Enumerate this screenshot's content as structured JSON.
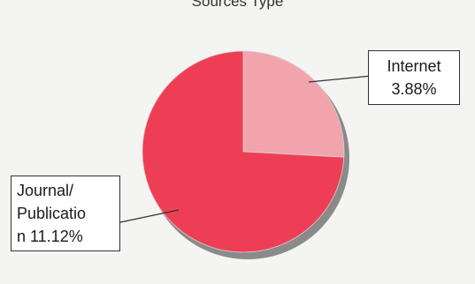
{
  "chart_data": {
    "type": "pie",
    "title": "Sources Type",
    "slices": [
      {
        "label": "Internet",
        "value": 3.88,
        "display": "3.88%",
        "color": "#f2a4ac"
      },
      {
        "label": "Journal/ Publication",
        "value": 11.12,
        "display": "11.12%",
        "color": "#ee3e55"
      }
    ]
  },
  "callouts": {
    "internet": {
      "line1": "Internet",
      "line2": "3.88%"
    },
    "journal": {
      "line1": "Journal/",
      "line2": "Publicatio",
      "line3": "n 11.12%"
    }
  }
}
